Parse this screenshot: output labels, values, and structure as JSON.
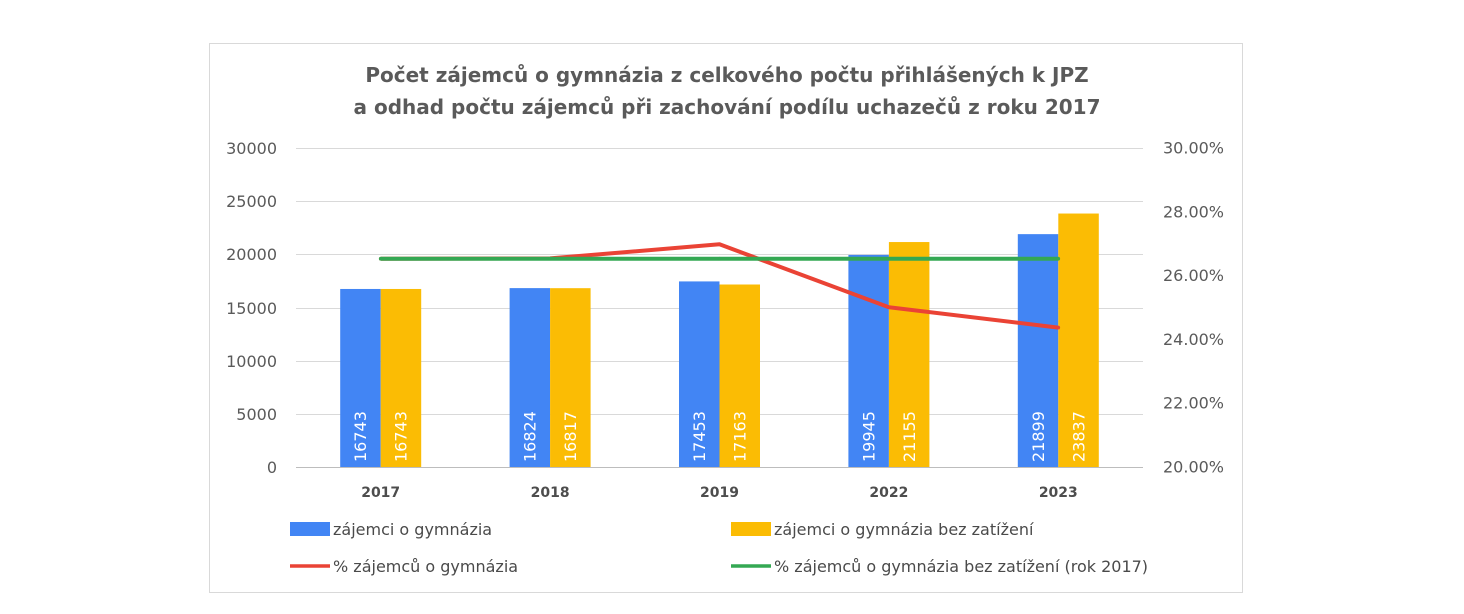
{
  "chart_data": {
    "type": "bar",
    "title": [
      "Počet zájemců o gymnázia z celkového počtu přihlášených k JPZ",
      "a odhad počtu zájemců při zachování podílu uchazečů z roku 2017"
    ],
    "categories": [
      "2017",
      "2018",
      "2019",
      "2022",
      "2023"
    ],
    "series": [
      {
        "name": "zájemci o gymnázia",
        "type": "bar",
        "axis": "left",
        "color": "#4285F4",
        "values": [
          16743,
          16824,
          17453,
          19945,
          21899
        ]
      },
      {
        "name": "zájemci o gymnázia bez zatížení",
        "type": "bar",
        "axis": "left",
        "color": "#FBBC04",
        "values": [
          16743,
          16817,
          17163,
          21155,
          23837
        ]
      },
      {
        "name": "% zájemců o gymnázia",
        "type": "line",
        "axis": "right",
        "color": "#EA4335",
        "values": [
          26.53,
          26.54,
          26.98,
          25.01,
          24.37
        ]
      },
      {
        "name": "% zájemců o gymnázia bez zatížení (rok 2017)",
        "type": "line",
        "axis": "right",
        "color": "#34A853",
        "values": [
          26.53,
          26.53,
          26.53,
          26.53,
          26.53
        ]
      }
    ],
    "y_left": {
      "lim": [
        0,
        30000
      ],
      "ticks": [
        "0",
        "5000",
        "10000",
        "15000",
        "20000",
        "25000",
        "30000"
      ]
    },
    "y_right": {
      "lim": [
        20,
        30
      ],
      "ticks": [
        "20.00%",
        "22.00%",
        "24.00%",
        "26.00%",
        "28.00%",
        "30.00%"
      ]
    },
    "bar_value_labels": true,
    "grid": true,
    "legend": "bottom"
  }
}
